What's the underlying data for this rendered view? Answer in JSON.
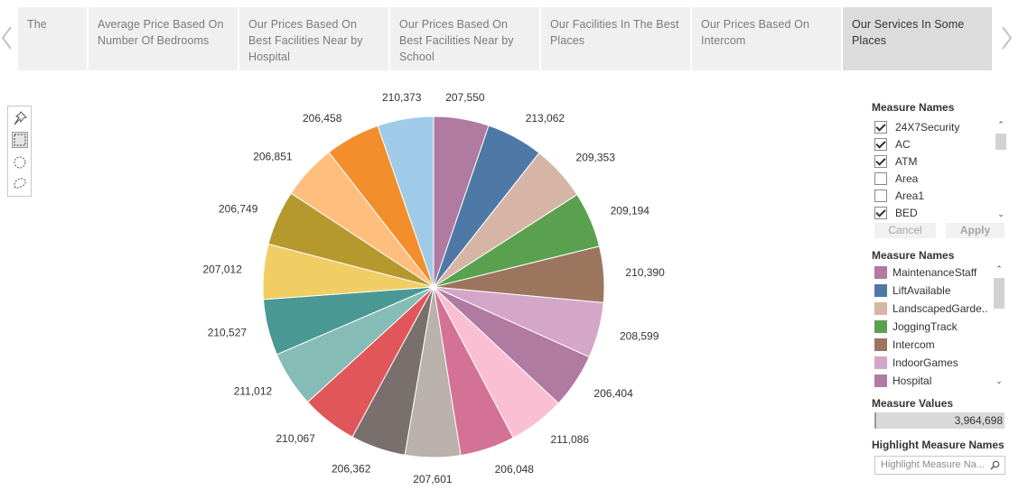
{
  "story_tabs": [
    {
      "label": "The",
      "active": false
    },
    {
      "label": "Average Price Based On Number Of Bedrooms",
      "active": false
    },
    {
      "label": "Our Prices Based On Best Facilities Near by Hospital",
      "active": false
    },
    {
      "label": "Our Prices Based On Best Facilities  Near by School",
      "active": false
    },
    {
      "label": "Our Facilities In The Best Places",
      "active": false
    },
    {
      "label": "Our Prices Based On Intercom",
      "active": false
    },
    {
      "label": "Our Services In Some Places",
      "active": true
    }
  ],
  "toolbar": {
    "tools": [
      "pin-icon",
      "rectangle-select-icon",
      "radial-select-icon",
      "lasso-select-icon"
    ]
  },
  "filter": {
    "title": "Measure Names",
    "items": [
      {
        "label": "24X7Security",
        "checked": true
      },
      {
        "label": "AC",
        "checked": true
      },
      {
        "label": "ATM",
        "checked": true
      },
      {
        "label": "Area",
        "checked": false
      },
      {
        "label": "Area1",
        "checked": false
      },
      {
        "label": "BED",
        "checked": true
      }
    ],
    "cancel_label": "Cancel",
    "apply_label": "Apply"
  },
  "legend": {
    "title": "Measure Names",
    "items": [
      {
        "label": "MaintenanceStaff",
        "color": "#b07aa1"
      },
      {
        "label": "LiftAvailable",
        "color": "#4e79a7"
      },
      {
        "label": "LandscapedGarde..",
        "color": "#d7b5a6"
      },
      {
        "label": "JoggingTrack",
        "color": "#59a14f"
      },
      {
        "label": "Intercom",
        "color": "#9c755f"
      },
      {
        "label": "IndoorGames",
        "color": "#d4a6c8"
      },
      {
        "label": "Hospital",
        "color": "#b07aa1"
      }
    ]
  },
  "measure_values": {
    "title": "Measure Values",
    "value": "3,964,698"
  },
  "highlight": {
    "title": "Highlight Measure Names",
    "placeholder": "Highlight Measure Na..."
  },
  "chart_data": {
    "type": "pie",
    "start_angle_deg": 0,
    "direction": "clockwise",
    "slices": [
      {
        "label": "207,550",
        "value": 207550,
        "color": "#b07aa1"
      },
      {
        "label": "213,062",
        "value": 213062,
        "color": "#4e79a7"
      },
      {
        "label": "209,353",
        "value": 209353,
        "color": "#d7b5a6"
      },
      {
        "label": "209,194",
        "value": 209194,
        "color": "#59a14f"
      },
      {
        "label": "210,390",
        "value": 210390,
        "color": "#9c755f"
      },
      {
        "label": "208,599",
        "value": 208599,
        "color": "#d4a6c8"
      },
      {
        "label": "206,404",
        "value": 206404,
        "color": "#b07aa1"
      },
      {
        "label": "211,086",
        "value": 211086,
        "color": "#fabfd2"
      },
      {
        "label": "206,048",
        "value": 206048,
        "color": "#d37295"
      },
      {
        "label": "207,601",
        "value": 207601,
        "color": "#bab0ac"
      },
      {
        "label": "206,362",
        "value": 206362,
        "color": "#79706e"
      },
      {
        "label": "210,067",
        "value": 210067,
        "color": "#e15759"
      },
      {
        "label": "211,012",
        "value": 211012,
        "color": "#86bcb6"
      },
      {
        "label": "210,527",
        "value": 210527,
        "color": "#499894"
      },
      {
        "label": "207,012",
        "value": 207012,
        "color": "#f1ce63"
      },
      {
        "label": "206,749",
        "value": 206749,
        "color": "#b6992d"
      },
      {
        "label": "206,851",
        "value": 206851,
        "color": "#ffbe7d"
      },
      {
        "label": "206,458",
        "value": 206458,
        "color": "#f28e2b"
      },
      {
        "label": "210,373",
        "value": 210373,
        "color": "#a0cbe8"
      }
    ]
  }
}
